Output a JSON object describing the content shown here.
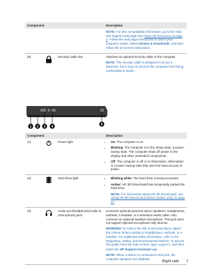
{
  "table1": {
    "header": [
      "Component",
      "Description"
    ],
    "rows": [
      {
        "description": {
          "note_label": "NOTE:",
          "note": [
            "For disc compatibility information, go to the Help and Support web page (see ",
            "More HP resources on page 3",
            ". Follow the web page instructions to select your computer model. Select ",
            "Drivers & Downloads",
            ", and then follow the on-screen instructions."
          ]
        }
      },
      {
        "number": "(8)",
        "component": "Security cable slot",
        "description": {
          "text": "Attaches an optional security cable to the computer.",
          "note_label": "NOTE:",
          "note": "The security cable is designed to act as a deterrent, but it may not prevent the computer from being mishandled or stolen."
        }
      }
    ]
  },
  "figure": {
    "callouts": [
      "1",
      "2",
      "3",
      "4",
      "5"
    ]
  },
  "table2": {
    "header": [
      "Component",
      "Description"
    ],
    "rows": [
      {
        "number": "(1)",
        "component": "Power light",
        "bullets": [
          [
            "On",
            ": The computer is on."
          ],
          [
            "Blinking",
            ": The computer is in the Sleep state, a power-saving state. The computer shuts off power to the display and other unneeded components."
          ],
          [
            "Off",
            ": The computer is off or in Hibernation. Hibernation is a power-saving state that uses the least amount of power."
          ]
        ]
      },
      {
        "number": "(2)",
        "component": "Hard drive light",
        "bullets": [
          [
            "Blinking white",
            ": The hard drive is being accessed."
          ],
          [
            "Amber",
            ": HP 3D DriveGuard has temporarily parked the hard drive."
          ]
        ],
        "note_label": "NOTE:",
        "note": [
          "For information about HP 3D DriveGuard, see ",
          "Using HP 3D DriveGuard (select models only) on page 27",
          "."
        ]
      },
      {
        "number": "(3)",
        "component": "Audio-out (headphone)/Audio-in (microphone) jack",
        "text": "Connects optional powered stereo speakers, headphones, earbuds, a headset, or a television audio cable. Also connects an optional headset microphone. This jack does not support optional microphone-only devices.",
        "warning_label": "WARNING!",
        "warning": [
          "To reduce the risk of personal injury, adjust the volume before putting on headphones, earbuds, or a headset. For additional safety information, refer to the ",
          "Regulatory, Safety, and Environmental Notices",
          ". To access this guide, from the Start screen, type ",
          "support",
          ", and then select the ",
          "HP Support Assistant",
          " app."
        ],
        "note_label": "NOTE:",
        "note": "When a device is connected to the jack, the computer speakers are disabled."
      }
    ]
  },
  "footer": {
    "section": "Right side",
    "page": "7"
  }
}
